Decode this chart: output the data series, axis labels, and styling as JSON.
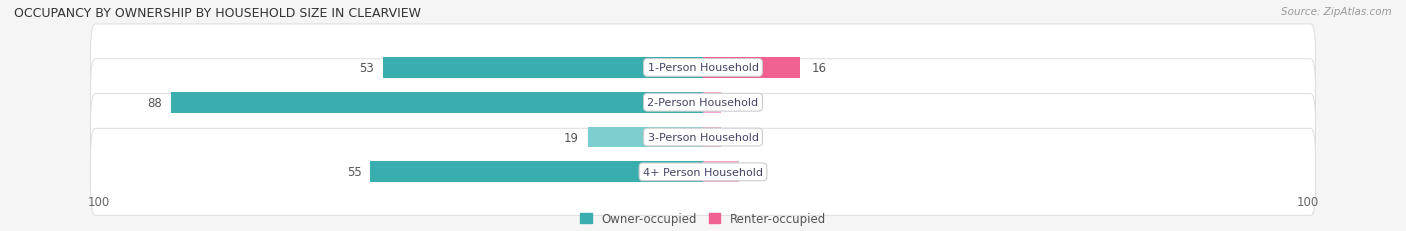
{
  "title": "OCCUPANCY BY OWNERSHIP BY HOUSEHOLD SIZE IN CLEARVIEW",
  "source": "Source: ZipAtlas.com",
  "categories": [
    "1-Person Household",
    "2-Person Household",
    "3-Person Household",
    "4+ Person Household"
  ],
  "owner_values": [
    53,
    88,
    19,
    55
  ],
  "renter_values": [
    16,
    0,
    0,
    6
  ],
  "owner_color_strong": "#3AAEAE",
  "owner_color_light": "#7DCFCF",
  "renter_color_strong": "#F06090",
  "renter_color_light": "#F4AACC",
  "bg_color": "#f5f5f5",
  "row_bg": "#ffffff",
  "row_border": "#dddddd",
  "axis_max": 100,
  "legend_owner": "Owner-occupied",
  "legend_renter": "Renter-occupied",
  "figsize": [
    14.06,
    2.32
  ],
  "dpi": 100
}
